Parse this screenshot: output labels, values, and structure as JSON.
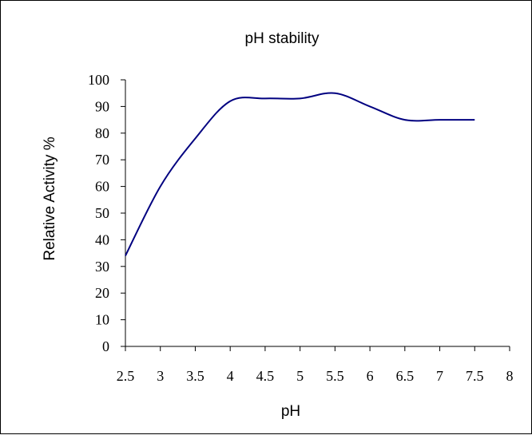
{
  "chart_data": {
    "type": "line",
    "title": "pH stability",
    "xlabel": "pH",
    "ylabel": "Relative Activity %",
    "x_ticks": [
      "2.5",
      "3",
      "3.5",
      "4",
      "4.5",
      "5",
      "5.5",
      "6",
      "6.5",
      "7",
      "7.5",
      "8"
    ],
    "y_ticks": [
      "0",
      "10",
      "20",
      "30",
      "40",
      "50",
      "60",
      "70",
      "80",
      "90",
      "100"
    ],
    "xlim": [
      2.5,
      8
    ],
    "ylim": [
      0,
      100
    ],
    "grid": false,
    "legend": "none",
    "series": [
      {
        "color": "#000080",
        "x": [
          2.5,
          3,
          3.5,
          4,
          4.5,
          5,
          5.5,
          6,
          6.5,
          7,
          7.5
        ],
        "y": [
          34,
          60,
          78,
          92,
          93,
          93,
          95,
          90,
          85,
          85,
          85
        ]
      }
    ]
  }
}
